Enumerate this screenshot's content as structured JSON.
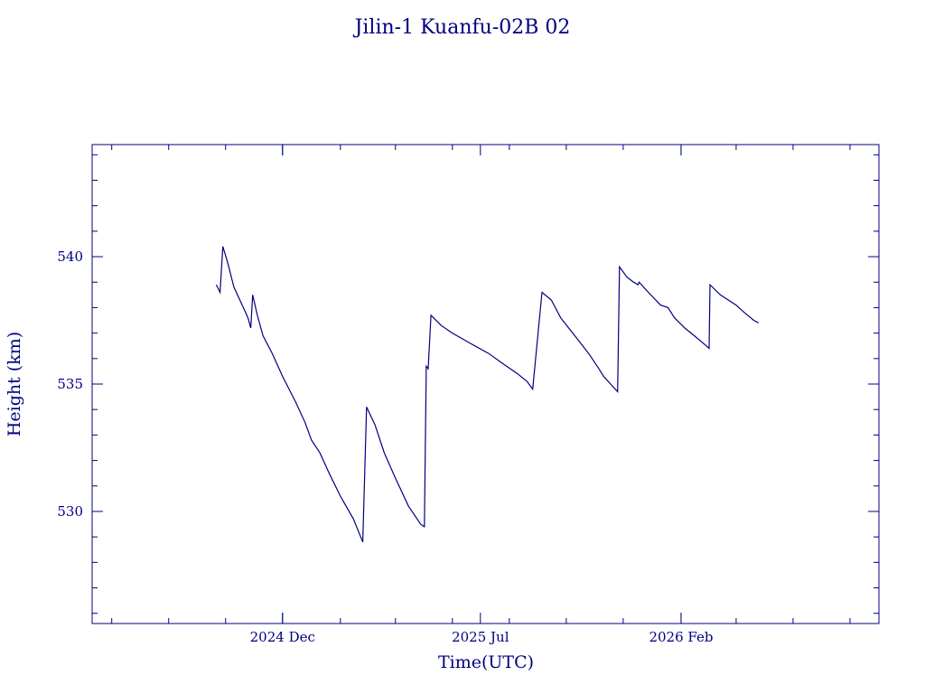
{
  "chart_data": {
    "type": "line",
    "title": "Jilin-1 Kuanfu-02B 02",
    "xlabel": "Time(UTC)",
    "ylabel": "Height (km)",
    "ylim": [
      525.6,
      544.4
    ],
    "y_ticks": [
      530,
      535,
      540
    ],
    "xlim": [
      "2024-05-11",
      "2026-09-01"
    ],
    "x_tick_labels": [
      {
        "label": "2024 Dec",
        "date": "2024-12-01"
      },
      {
        "label": "2025 Jul",
        "date": "2025-07-01"
      },
      {
        "label": "2026 Feb",
        "date": "2026-02-01"
      }
    ],
    "grid": false,
    "series": [
      {
        "points": [
          [
            "2024-09-21",
            538.9
          ],
          [
            "2024-09-25",
            538.6
          ],
          [
            "2024-09-28",
            540.4
          ],
          [
            "2024-10-03",
            539.8
          ],
          [
            "2024-10-10",
            538.8
          ],
          [
            "2024-10-15",
            538.4
          ],
          [
            "2024-10-20",
            538.0
          ],
          [
            "2024-10-25",
            537.6
          ],
          [
            "2024-10-28",
            537.2
          ],
          [
            "2024-10-30",
            538.5
          ],
          [
            "2024-11-04",
            537.7
          ],
          [
            "2024-11-10",
            536.9
          ],
          [
            "2024-11-20",
            536.2
          ],
          [
            "2024-12-01",
            535.3
          ],
          [
            "2024-12-15",
            534.3
          ],
          [
            "2024-12-25",
            533.5
          ],
          [
            "2025-01-01",
            532.8
          ],
          [
            "2025-01-10",
            532.3
          ],
          [
            "2025-01-20",
            531.5
          ],
          [
            "2025-02-01",
            530.6
          ],
          [
            "2025-02-15",
            529.7
          ],
          [
            "2025-02-25",
            528.8
          ],
          [
            "2025-03-01",
            534.1
          ],
          [
            "2025-03-10",
            533.4
          ],
          [
            "2025-03-20",
            532.3
          ],
          [
            "2025-04-01",
            531.3
          ],
          [
            "2025-04-15",
            530.2
          ],
          [
            "2025-04-28",
            529.5
          ],
          [
            "2025-05-02",
            529.4
          ],
          [
            "2025-05-04",
            535.7
          ],
          [
            "2025-05-06",
            535.6
          ],
          [
            "2025-05-09",
            537.7
          ],
          [
            "2025-05-20",
            537.3
          ],
          [
            "2025-06-01",
            537.0
          ],
          [
            "2025-06-20",
            536.6
          ],
          [
            "2025-07-10",
            536.2
          ],
          [
            "2025-07-25",
            535.8
          ],
          [
            "2025-08-10",
            535.4
          ],
          [
            "2025-08-20",
            535.1
          ],
          [
            "2025-08-26",
            534.8
          ],
          [
            "2025-09-05",
            538.6
          ],
          [
            "2025-09-15",
            538.3
          ],
          [
            "2025-09-25",
            537.6
          ],
          [
            "2025-10-10",
            536.9
          ],
          [
            "2025-10-25",
            536.2
          ],
          [
            "2025-11-05",
            535.6
          ],
          [
            "2025-11-10",
            535.3
          ],
          [
            "2025-11-25",
            534.7
          ],
          [
            "2025-11-26",
            537.0
          ],
          [
            "2025-11-27",
            539.6
          ],
          [
            "2025-12-05",
            539.2
          ],
          [
            "2025-12-12",
            539.0
          ],
          [
            "2025-12-17",
            538.9
          ],
          [
            "2025-12-18",
            539.0
          ],
          [
            "2025-12-28",
            538.6
          ],
          [
            "2026-01-10",
            538.1
          ],
          [
            "2026-01-18",
            538.0
          ],
          [
            "2026-01-25",
            537.6
          ],
          [
            "2026-02-05",
            537.2
          ],
          [
            "2026-02-15",
            536.9
          ],
          [
            "2026-02-28",
            536.5
          ],
          [
            "2026-03-03",
            536.4
          ],
          [
            "2026-03-04",
            538.9
          ],
          [
            "2026-03-15",
            538.5
          ],
          [
            "2026-04-01",
            538.1
          ],
          [
            "2026-04-10",
            537.8
          ],
          [
            "2026-04-20",
            537.5
          ],
          [
            "2026-04-25",
            537.4
          ]
        ]
      }
    ]
  }
}
